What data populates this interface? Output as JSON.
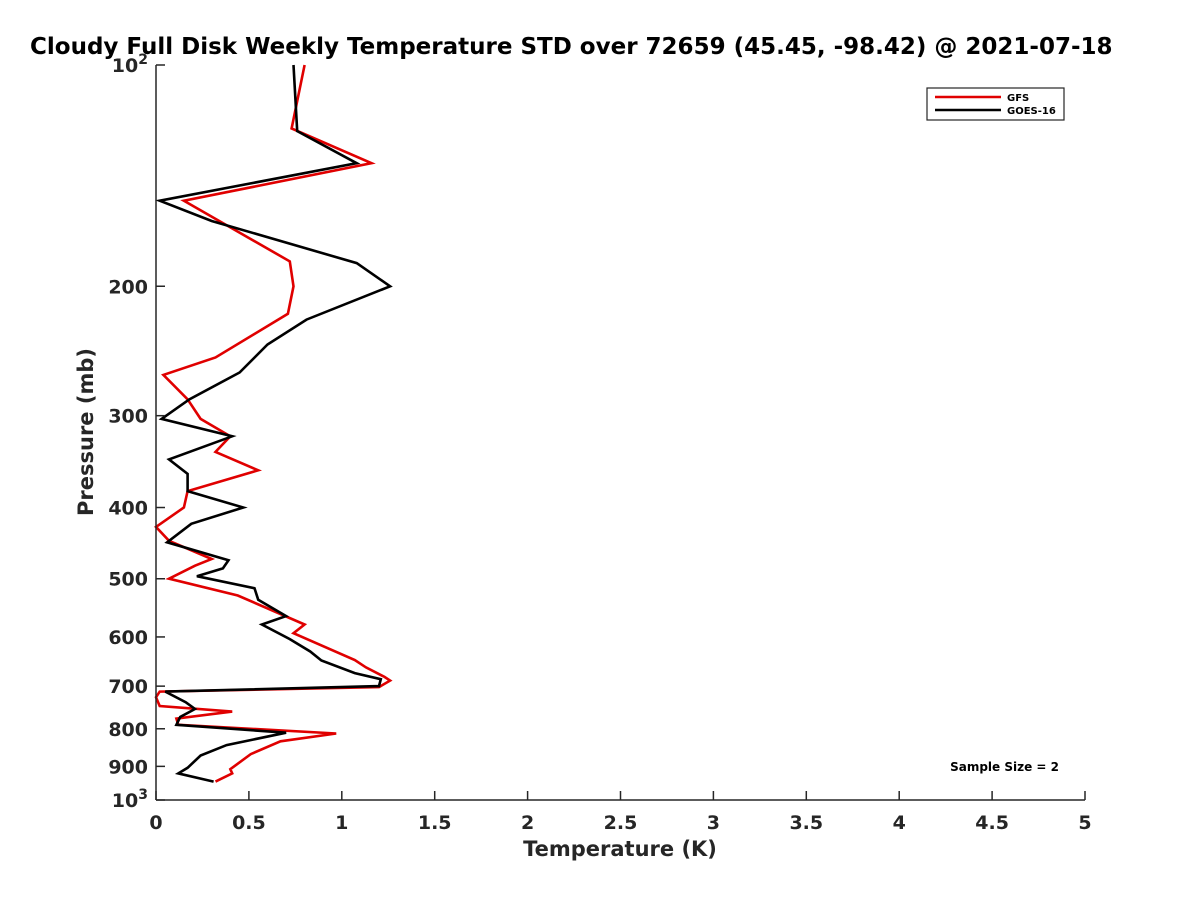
{
  "chart_data": {
    "type": "line",
    "title": "Cloudy Full Disk Weekly Temperature STD over 72659 (45.45, -98.42) @ 2021-07-18",
    "xlabel": "Temperature (K)",
    "ylabel": "Pressure (mb)",
    "xlim": [
      0,
      5
    ],
    "ylim": [
      100,
      1000
    ],
    "y_scale": "log",
    "y_reversed": true,
    "grid": false,
    "legend_position": "top-right",
    "x_ticks": [
      "0",
      "0.5",
      "1",
      "1.5",
      "2",
      "2.5",
      "3",
      "3.5",
      "4",
      "4.5",
      "5"
    ],
    "x_tick_values": [
      0,
      0.5,
      1,
      1.5,
      2,
      2.5,
      3,
      3.5,
      4,
      4.5,
      5
    ],
    "y_ticks": [
      {
        "value": 100,
        "base": "10",
        "exp": "2"
      },
      {
        "value": 200,
        "label": "200"
      },
      {
        "value": 300,
        "label": "300"
      },
      {
        "value": 400,
        "label": "400"
      },
      {
        "value": 500,
        "label": "500"
      },
      {
        "value": 600,
        "label": "600"
      },
      {
        "value": 700,
        "label": "700"
      },
      {
        "value": 800,
        "label": "800"
      },
      {
        "value": 900,
        "label": "900"
      },
      {
        "value": 1000,
        "base": "10",
        "exp": "3"
      }
    ],
    "series": [
      {
        "name": "GFS",
        "color": "#e00000",
        "points": [
          [
            0.8,
            100
          ],
          [
            0.73,
            122
          ],
          [
            1.16,
            136
          ],
          [
            0.15,
            153
          ],
          [
            0.72,
            185
          ],
          [
            0.74,
            200
          ],
          [
            0.71,
            218
          ],
          [
            0.32,
            250
          ],
          [
            0.04,
            264
          ],
          [
            0.17,
            285
          ],
          [
            0.24,
            303
          ],
          [
            0.4,
            320
          ],
          [
            0.32,
            336
          ],
          [
            0.55,
            356
          ],
          [
            0.17,
            380
          ],
          [
            0.15,
            400
          ],
          [
            0.0,
            425
          ],
          [
            0.07,
            444
          ],
          [
            0.3,
            470
          ],
          [
            0.21,
            480
          ],
          [
            0.07,
            500
          ],
          [
            0.44,
            527
          ],
          [
            0.8,
            577
          ],
          [
            0.74,
            593
          ],
          [
            1.07,
            645
          ],
          [
            1.13,
            660
          ],
          [
            1.23,
            680
          ],
          [
            1.26,
            688
          ],
          [
            1.2,
            702
          ],
          [
            0.02,
            712
          ],
          [
            0.0,
            725
          ],
          [
            0.02,
            745
          ],
          [
            0.41,
            758
          ],
          [
            0.11,
            775
          ],
          [
            0.12,
            790
          ],
          [
            0.97,
            812
          ],
          [
            0.67,
            832
          ],
          [
            0.51,
            866
          ],
          [
            0.4,
            908
          ],
          [
            0.41,
            920
          ],
          [
            0.32,
            944
          ]
        ]
      },
      {
        "name": "GOES-16",
        "color": "#000000",
        "points": [
          [
            0.74,
            100
          ],
          [
            0.76,
            123
          ],
          [
            1.08,
            136
          ],
          [
            0.02,
            153
          ],
          [
            0.3,
            163
          ],
          [
            1.08,
            186
          ],
          [
            1.26,
            200
          ],
          [
            0.81,
            222
          ],
          [
            0.6,
            240
          ],
          [
            0.45,
            262
          ],
          [
            0.18,
            285
          ],
          [
            0.03,
            303
          ],
          [
            0.41,
            320
          ],
          [
            0.07,
            344
          ],
          [
            0.17,
            360
          ],
          [
            0.17,
            380
          ],
          [
            0.47,
            400
          ],
          [
            0.19,
            421
          ],
          [
            0.06,
            446
          ],
          [
            0.39,
            472
          ],
          [
            0.36,
            484
          ],
          [
            0.22,
            496
          ],
          [
            0.53,
            515
          ],
          [
            0.55,
            534
          ],
          [
            0.7,
            562
          ],
          [
            0.57,
            577
          ],
          [
            0.72,
            604
          ],
          [
            0.83,
            628
          ],
          [
            0.89,
            646
          ],
          [
            1.07,
            672
          ],
          [
            1.21,
            685
          ],
          [
            1.2,
            700
          ],
          [
            0.05,
            712
          ],
          [
            0.16,
            736
          ],
          [
            0.21,
            752
          ],
          [
            0.13,
            771
          ],
          [
            0.11,
            790
          ],
          [
            0.7,
            810
          ],
          [
            0.38,
            842
          ],
          [
            0.24,
            870
          ],
          [
            0.17,
            904
          ],
          [
            0.12,
            920
          ],
          [
            0.31,
            944
          ]
        ]
      }
    ],
    "annotation": "Sample Size = 2"
  }
}
